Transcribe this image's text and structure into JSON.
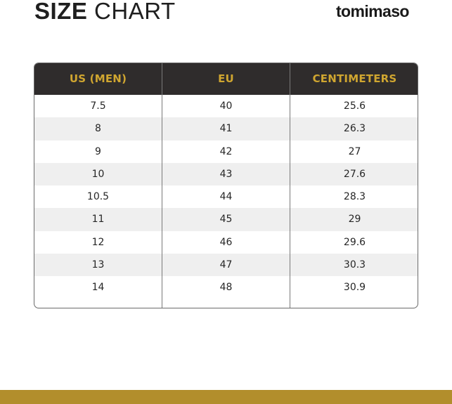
{
  "header": {
    "title_bold": "SIZE",
    "title_light": "CHART",
    "brand": "tomimaso"
  },
  "table": {
    "columns": [
      "US (MEN)",
      "EU",
      "CENTIMETERS"
    ],
    "rows": [
      [
        "7.5",
        "40",
        "25.6"
      ],
      [
        "8",
        "41",
        "26.3"
      ],
      [
        "9",
        "42",
        "27"
      ],
      [
        "10",
        "43",
        "27.6"
      ],
      [
        "10.5",
        "44",
        "28.3"
      ],
      [
        "11",
        "45",
        "29"
      ],
      [
        "12",
        "46",
        "29.6"
      ],
      [
        "13",
        "47",
        "30.3"
      ],
      [
        "14",
        "48",
        "30.9"
      ]
    ]
  },
  "colors": {
    "header_bg": "#2f2c2c",
    "header_text": "#d0a630",
    "row_alt": "#efefef",
    "footer_bar": "#b28e2c"
  }
}
